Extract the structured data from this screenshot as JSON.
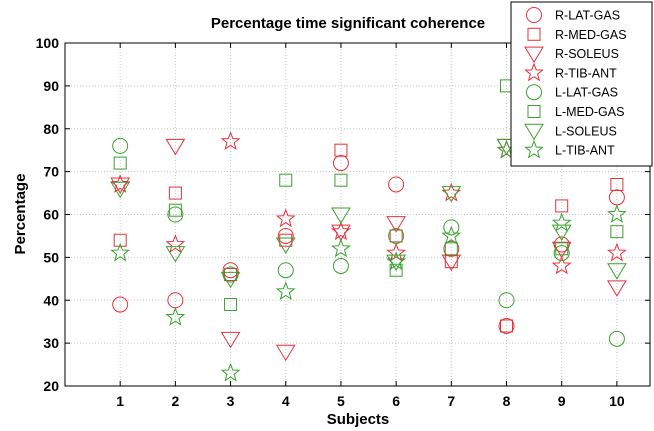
{
  "chart_data": {
    "type": "scatter",
    "title": "Percentage time significant coherence",
    "xlabel": "Subjects",
    "ylabel": "Percentage",
    "categories": [
      "1",
      "2",
      "3",
      "4",
      "5",
      "6",
      "7",
      "8",
      "9",
      "10"
    ],
    "x": [
      1,
      2,
      3,
      4,
      5,
      6,
      7,
      8,
      9,
      10
    ],
    "xlim": [
      0,
      10.6
    ],
    "ylim": [
      20,
      100
    ],
    "yticks": [
      20,
      30,
      40,
      50,
      60,
      70,
      80,
      90,
      100
    ],
    "grid": true,
    "legend_position": "top-right",
    "colors": {
      "red": "#e8313a",
      "green": "#3aa12f"
    },
    "series": [
      {
        "name": "R-LAT-GAS",
        "marker": "circle",
        "color": "#e8313a",
        "values": [
          39,
          40,
          47,
          55,
          72,
          67,
          52,
          34,
          53,
          64
        ]
      },
      {
        "name": "R-MED-GAS",
        "marker": "square",
        "color": "#e8313a",
        "values": [
          54,
          65,
          46,
          54,
          75,
          55,
          49,
          34,
          62,
          67
        ]
      },
      {
        "name": "R-SOLEUS",
        "marker": "triangle",
        "color": "#e8313a",
        "values": [
          67,
          76,
          31,
          28,
          56,
          58,
          49,
          76,
          52,
          43
        ]
      },
      {
        "name": "R-TIB-ANT",
        "marker": "star",
        "color": "#e8313a",
        "values": [
          67,
          53,
          77,
          59,
          56,
          51,
          65,
          75,
          48,
          51
        ]
      },
      {
        "name": "L-LAT-GAS",
        "marker": "circle",
        "color": "#3aa12f",
        "values": [
          76,
          60,
          46,
          47,
          48,
          55,
          57,
          40,
          51,
          31
        ]
      },
      {
        "name": "L-MED-GAS",
        "marker": "square",
        "color": "#3aa12f",
        "values": [
          72,
          61,
          39,
          68,
          68,
          47,
          52,
          90,
          52,
          56
        ]
      },
      {
        "name": "L-SOLEUS",
        "marker": "triangle",
        "color": "#3aa12f",
        "values": [
          66,
          51,
          45,
          53,
          60,
          49,
          65,
          76,
          56,
          47
        ]
      },
      {
        "name": "L-TIB-ANT",
        "marker": "star",
        "color": "#3aa12f",
        "values": [
          51,
          36,
          23,
          42,
          52,
          49,
          55,
          75,
          58,
          60
        ]
      }
    ]
  }
}
